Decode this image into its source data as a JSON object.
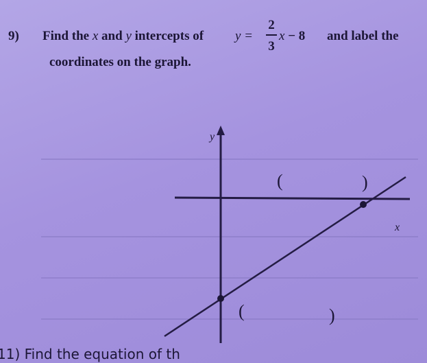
{
  "problem": {
    "number": "9)",
    "find": "Find the",
    "x": "x",
    "and": "and",
    "y": "y",
    "intercepts_of": "intercepts of",
    "equation": {
      "lhs": "y =",
      "numerator": "2",
      "denominator": "3",
      "variable": "x",
      "constant": " − 8"
    },
    "and_label": "and label the",
    "line2": "coordinates on the graph."
  },
  "graph": {
    "y_axis_label": "y",
    "x_axis_label": "x",
    "x_intercept_label": {
      "open": "(",
      "close": ")"
    },
    "y_intercept_label": {
      "open": "(",
      "close": ")"
    }
  },
  "next_problem": "11) Find the equation of th"
}
